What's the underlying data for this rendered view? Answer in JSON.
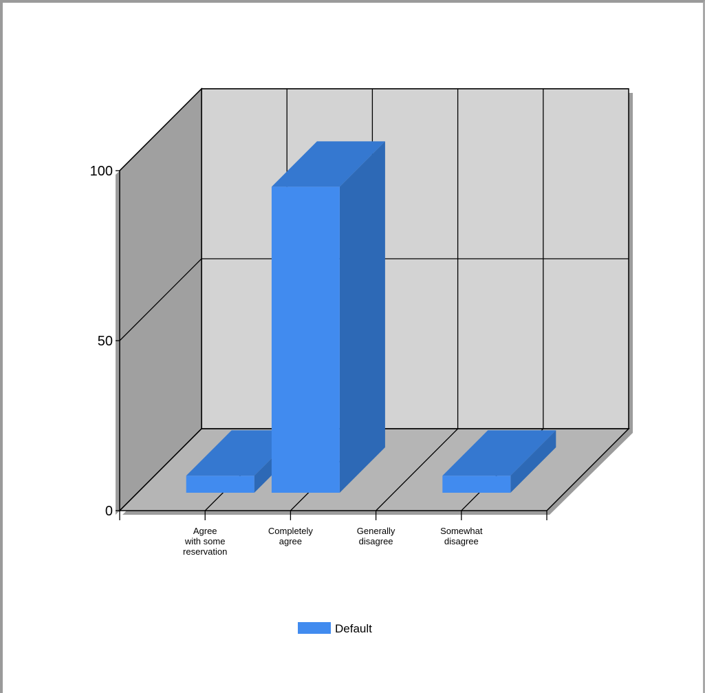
{
  "chart_data": {
    "type": "bar",
    "style": "3d",
    "categories": [
      "Agree\nwith some\nreservation",
      "Completely\nagree",
      "Generally\ndisagree",
      "Somewhat\ndisagree"
    ],
    "series": [
      {
        "name": "Default",
        "values": [
          5,
          90,
          0,
          5
        ]
      }
    ],
    "ylim": [
      0,
      100
    ],
    "yticks": [
      "0",
      "50",
      "100"
    ],
    "grid": true,
    "legend": "bottom-center",
    "colors": {
      "bar_front": "#418bef",
      "bar_top": "#3578d0",
      "bar_side": "#2d69b6",
      "back_wall": "#d3d3d3",
      "side_wall": "#a0a0a0",
      "floor": "#b5b5b5",
      "wall_shadow": "#9c9c9c"
    }
  }
}
